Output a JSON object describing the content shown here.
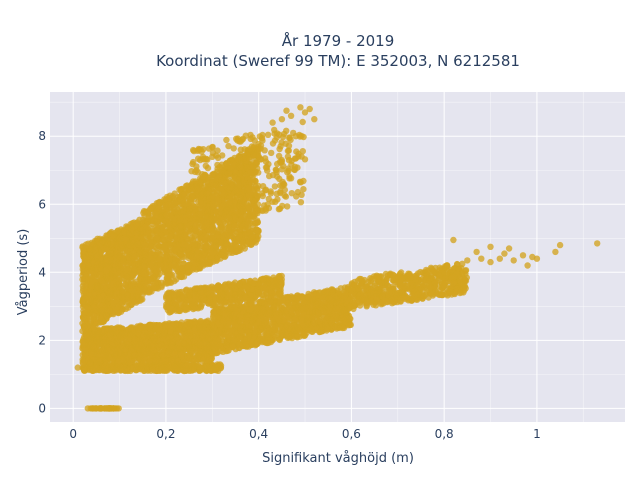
{
  "chart_data": {
    "type": "scatter",
    "title_line1": "År 1979 - 2019",
    "title_line2": "Koordinat (Sweref 99 TM): E 352003, N 6212581",
    "xlabel": "Signifikant våghöjd (m)",
    "ylabel": "Vågperiod (s)",
    "xlim": [
      -0.05,
      1.19
    ],
    "ylim": [
      -0.4,
      9.3
    ],
    "x_ticks": [
      0,
      0.2,
      0.4,
      0.6,
      0.8,
      1
    ],
    "x_tick_labels": [
      "0",
      "0,2",
      "0,4",
      "0,6",
      "0,8",
      "1"
    ],
    "y_ticks": [
      0,
      2,
      4,
      6,
      8
    ],
    "y_tick_labels": [
      "0",
      "2",
      "4",
      "6",
      "8"
    ],
    "grid": true,
    "legend": "none",
    "marker_color": "#D4A420",
    "plot_bg": "#E5E5EF",
    "grid_color": "#FFFFFF",
    "series": [
      {
        "clusters": [
          {
            "kind": "band",
            "x": [
              0.03,
              0.1
            ],
            "y0": [
              0,
              0
            ],
            "y1": [
              0,
              0
            ],
            "count": 40
          },
          {
            "kind": "band",
            "x": [
              0.02,
              0.32
            ],
            "y0": [
              1.1,
              1.1
            ],
            "y1": [
              1.3,
              1.3
            ],
            "count": 420
          },
          {
            "kind": "band",
            "x": [
              0.02,
              0.3
            ],
            "y0": [
              1.3,
              1.4
            ],
            "y1": [
              2.3,
              2.6
            ],
            "count": 1400
          },
          {
            "kind": "band",
            "x": [
              0.3,
              0.6
            ],
            "y0": [
              1.6,
              2.4
            ],
            "y1": [
              2.9,
              3.6
            ],
            "count": 1300
          },
          {
            "kind": "band",
            "x": [
              0.6,
              0.85
            ],
            "y0": [
              2.9,
              3.4
            ],
            "y1": [
              3.8,
              4.3
            ],
            "count": 550
          },
          {
            "kind": "band",
            "x": [
              0.2,
              0.45
            ],
            "y0": [
              2.8,
              3.3
            ],
            "y1": [
              3.4,
              3.9
            ],
            "count": 500
          },
          {
            "kind": "band",
            "x": [
              0.02,
              0.15
            ],
            "y0": [
              2.2,
              3.2
            ],
            "y1": [
              4.8,
              5.6
            ],
            "count": 1100
          },
          {
            "kind": "band",
            "x": [
              0.15,
              0.4
            ],
            "y0": [
              3.3,
              4.9
            ],
            "y1": [
              5.8,
              7.8
            ],
            "count": 1700
          },
          {
            "kind": "band",
            "x": [
              0.25,
              0.5
            ],
            "y0": [
              5.2,
              6.0
            ],
            "y1": [
              7.6,
              8.5
            ],
            "count": 350
          }
        ],
        "points": [
          [
            0.85,
            4.35
          ],
          [
            0.88,
            4.4
          ],
          [
            0.9,
            4.3
          ],
          [
            0.92,
            4.4
          ],
          [
            0.95,
            4.35
          ],
          [
            0.97,
            4.5
          ],
          [
            0.99,
            4.45
          ],
          [
            1.0,
            4.4
          ],
          [
            1.04,
            4.6
          ],
          [
            1.05,
            4.8
          ],
          [
            1.13,
            4.85
          ],
          [
            0.98,
            4.2
          ],
          [
            0.94,
            4.7
          ],
          [
            0.82,
            4.95
          ],
          [
            0.87,
            4.6
          ],
          [
            0.9,
            4.75
          ],
          [
            0.93,
            4.55
          ],
          [
            0.8,
            3.6
          ],
          [
            0.78,
            3.7
          ],
          [
            0.75,
            3.5
          ],
          [
            0.49,
            8.85
          ],
          [
            0.47,
            8.6
          ],
          [
            0.51,
            8.8
          ],
          [
            0.52,
            8.5
          ],
          [
            0.5,
            8.7
          ],
          [
            0.45,
            8.5
          ],
          [
            0.48,
            8.0
          ],
          [
            0.46,
            8.75
          ],
          [
            0.43,
            8.4
          ],
          [
            0.03,
            3.0
          ],
          [
            0.05,
            1.2
          ],
          [
            0.07,
            1.15
          ],
          [
            0.01,
            1.2
          ],
          [
            0.35,
            4.6
          ],
          [
            0.37,
            4.7
          ]
        ]
      }
    ]
  }
}
